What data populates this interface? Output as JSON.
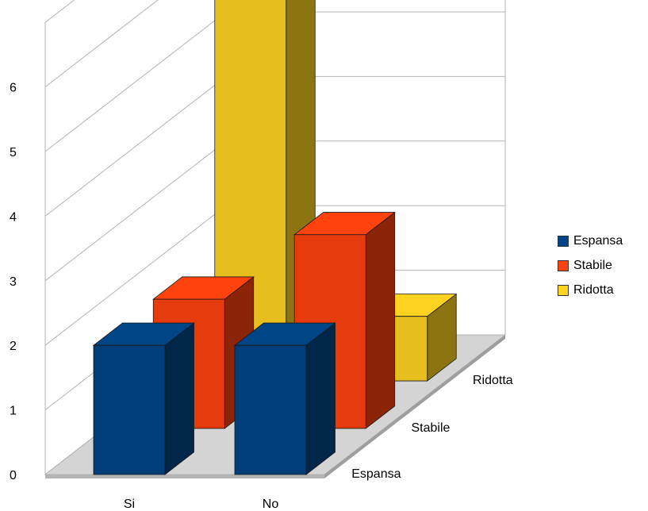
{
  "chart_data": {
    "type": "bar",
    "subtype": "3d-clustered",
    "categories": [
      "Si",
      "No"
    ],
    "series": [
      {
        "name": "Espansa",
        "values": [
          2,
          2
        ],
        "color": "#004586"
      },
      {
        "name": "Stabile",
        "values": [
          2,
          3
        ],
        "color": "#ff420e"
      },
      {
        "name": "Ridotta",
        "values": [
          7,
          1
        ],
        "color": "#ffd320"
      }
    ],
    "depth_labels": [
      "Espansa",
      "Stabile",
      "Ridotta"
    ],
    "y_ticks": [
      "0",
      "1",
      "2",
      "3",
      "4",
      "5",
      "6"
    ],
    "ylim": [
      0,
      7
    ],
    "grid": true,
    "legend_position": "right"
  }
}
